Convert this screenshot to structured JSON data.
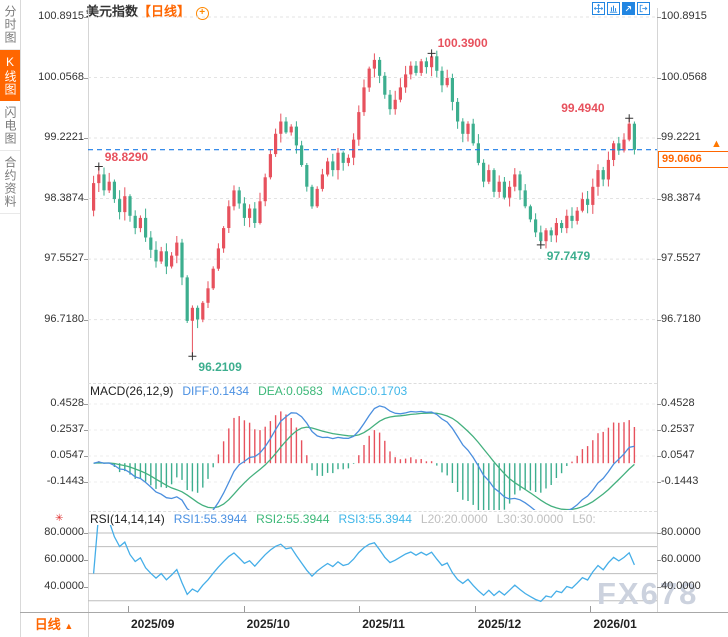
{
  "sidebar": {
    "tabs": [
      {
        "label": "分时图",
        "selected": false
      },
      {
        "label": "K线图",
        "selected": true
      },
      {
        "label": "闪电图",
        "selected": false
      },
      {
        "label": "合约资料",
        "selected": false
      }
    ]
  },
  "header": {
    "title": "美元指数",
    "period_tag": "【日线】",
    "add_indicator_glyph": "+"
  },
  "price_axis": {
    "labels": [
      "100.8915",
      "100.0568",
      "99.2221",
      "98.3874",
      "97.5527",
      "96.7180"
    ]
  },
  "current_price": {
    "value": "99.0606",
    "arrow_glyph": "▲"
  },
  "macd_panel": {
    "name": "MACD(26,12,9)",
    "diff_label": "DIFF:0.1434",
    "dea_label": "DEA:0.0583",
    "macd_label": "MACD:0.1703",
    "axis_labels": [
      "0.4528",
      "0.2537",
      "0.0547",
      "-0.1443"
    ]
  },
  "rsi_panel": {
    "name": "RSI(14,14,14)",
    "rsi1_label": "RSI1:55.3944",
    "rsi2_label": "RSI2:55.3944",
    "rsi3_label": "RSI3:55.3944",
    "l20_label": "L20:20.0000",
    "l30_label": "L30:30.0000",
    "l50_label": "L50:",
    "axis_labels": [
      "80.0000",
      "60.0000",
      "40.0000"
    ]
  },
  "footer": {
    "period_selector": "日线",
    "dropdown_glyph": "▲"
  },
  "watermark": "FX678",
  "colors": {
    "up": "#e7515d",
    "down": "#3cae8e",
    "accent_orange": "#ff6600",
    "current_price_line": "#1b7ce8",
    "diff_line": "#4a8ede",
    "dea_line": "#44b07e",
    "rsi_line": "#45aee8",
    "legend_blue": "#4a90e2",
    "legend_green": "#3cb878",
    "legend_cyan": "#3fb6e8",
    "legend_gray": "#c0c0c0"
  },
  "chart_data": {
    "type": "candlestick",
    "title": "美元指数",
    "interval": "日线",
    "x_categories": [
      "2025/09",
      "2025/10",
      "2025/11",
      "2025/12",
      "2026/01"
    ],
    "y_ticks": [
      100.8915,
      100.0568,
      99.2221,
      98.3874,
      97.5527,
      96.718
    ],
    "first_open": 98.22,
    "closes": [
      98.6,
      98.72,
      98.5,
      98.62,
      98.38,
      98.2,
      98.42,
      98.15,
      97.98,
      98.12,
      97.85,
      97.68,
      97.52,
      97.66,
      97.45,
      97.6,
      97.78,
      97.3,
      96.7,
      96.88,
      96.72,
      96.95,
      97.15,
      97.42,
      97.7,
      97.98,
      98.28,
      98.5,
      98.32,
      98.12,
      98.25,
      98.05,
      98.35,
      98.68,
      99.0,
      99.28,
      99.45,
      99.3,
      99.38,
      99.12,
      98.85,
      98.55,
      98.28,
      98.52,
      98.72,
      98.9,
      98.78,
      99.02,
      98.88,
      98.95,
      99.2,
      99.58,
      99.92,
      100.18,
      100.3,
      100.08,
      99.82,
      99.62,
      99.75,
      99.92,
      100.1,
      100.22,
      100.12,
      100.28,
      100.2,
      100.35,
      100.15,
      99.95,
      100.05,
      99.72,
      99.45,
      99.28,
      99.42,
      99.15,
      98.88,
      98.62,
      98.78,
      98.48,
      98.62,
      98.4,
      98.55,
      98.72,
      98.5,
      98.28,
      98.1,
      97.92,
      97.8,
      97.95,
      97.88,
      98.05,
      97.98,
      98.15,
      98.08,
      98.22,
      98.38,
      98.3,
      98.55,
      98.78,
      98.65,
      98.92,
      99.15,
      99.05,
      99.2,
      99.42,
      99.0606
    ],
    "wick_overrides": {
      "1": {
        "high": 98.829
      },
      "19": {
        "low": 96.2109
      },
      "65": {
        "high": 100.39
      },
      "86": {
        "low": 97.7479
      },
      "103": {
        "high": 99.494
      }
    },
    "last_price": 99.0606,
    "annotations": [
      {
        "text": "98.8290",
        "price": 98.829,
        "index": 1,
        "kind": "high",
        "align": "right",
        "vpos": "above"
      },
      {
        "text": "96.2109",
        "price": 96.2109,
        "index": 19,
        "kind": "low",
        "align": "right",
        "vpos": "below"
      },
      {
        "text": "100.3900",
        "price": 100.39,
        "index": 65,
        "kind": "high",
        "align": "right",
        "vpos": "above"
      },
      {
        "text": "97.7479",
        "price": 97.7479,
        "index": 86,
        "kind": "low",
        "align": "right",
        "vpos": "below"
      },
      {
        "text": "99.4940",
        "price": 99.494,
        "index": 103,
        "kind": "high",
        "align": "left",
        "vpos": "above"
      }
    ],
    "indicators": {
      "macd": {
        "params": [
          26,
          12,
          9
        ],
        "diff": 0.1434,
        "dea": 0.0583,
        "macd": 0.1703,
        "y_ticks": [
          0.4528,
          0.2537,
          0.0547,
          -0.1443
        ]
      },
      "rsi": {
        "params": [
          14,
          14,
          14
        ],
        "rsi1": 55.3944,
        "rsi2": 55.3944,
        "rsi3": 55.3944,
        "guide_lines": [
          80,
          70,
          50,
          30
        ],
        "y_ticks": [
          80,
          60,
          40
        ]
      }
    }
  }
}
